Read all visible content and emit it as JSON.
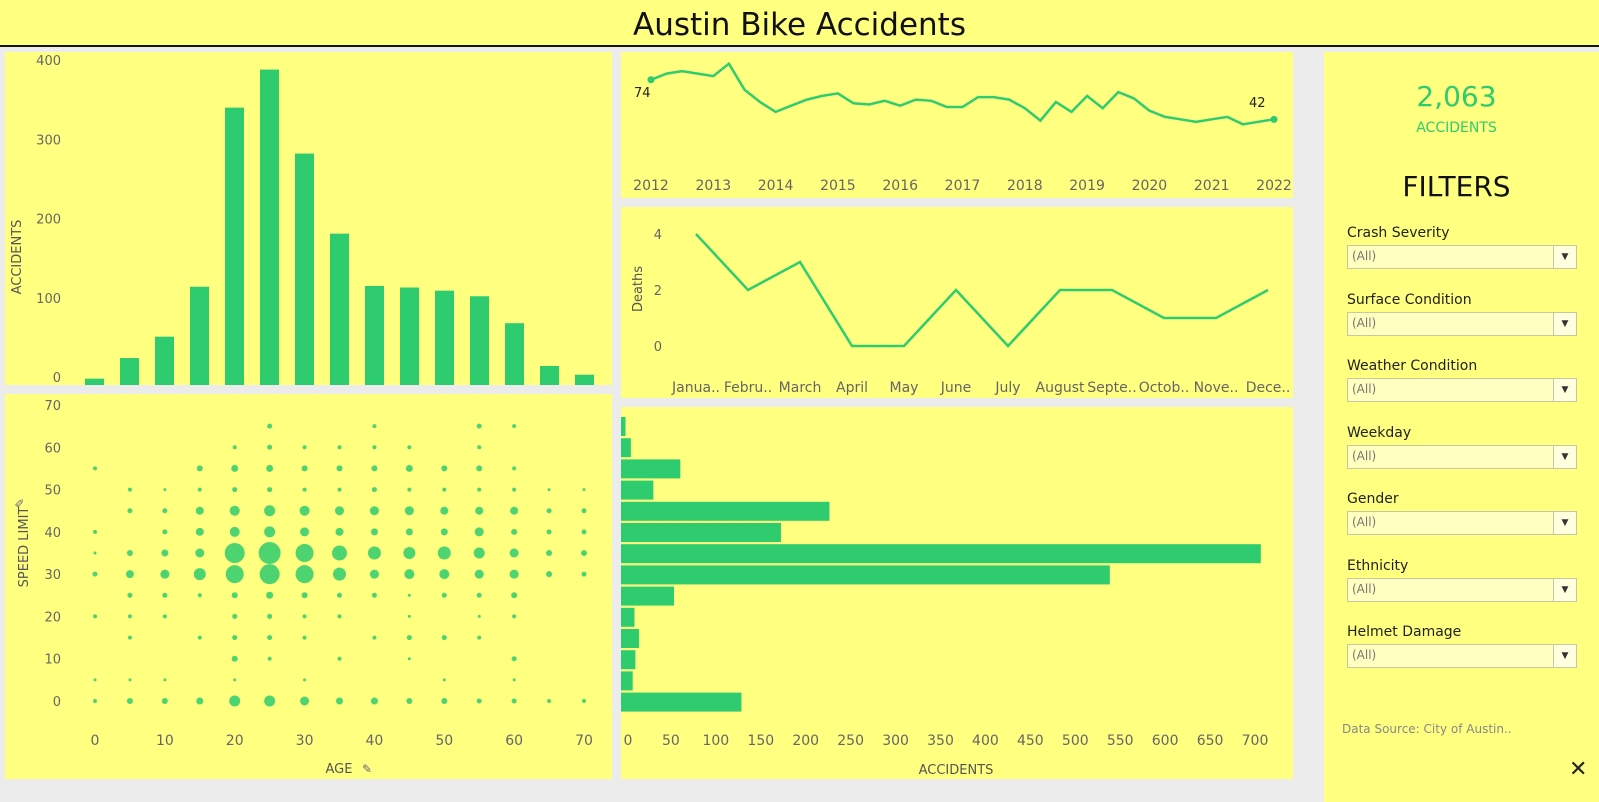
{
  "title": "Austin Bike Accidents",
  "colors": {
    "accent": "#2ecc6f",
    "background": "#ffff80",
    "divider": "#ececec"
  },
  "kpi": {
    "value": "2,063",
    "label": "ACCIDENTS"
  },
  "filters_title": "FILTERS",
  "filters": [
    {
      "label": "Crash Severity",
      "value": "(All)"
    },
    {
      "label": "Surface Condition",
      "value": "(All)"
    },
    {
      "label": "Weather Condition",
      "value": "(All)"
    },
    {
      "label": "Weekday",
      "value": "(All)"
    },
    {
      "label": "Gender",
      "value": "(All)"
    },
    {
      "label": "Ethnicity",
      "value": "(All)"
    },
    {
      "label": "Helmet Damage",
      "value": "(All)"
    }
  ],
  "source": "Data Source: City of Austin..",
  "icons": {
    "pin": "pin-icon",
    "close": "close-icon",
    "dropdown": "chevron-down-icon"
  },
  "chart_data": [
    {
      "id": "age_histogram",
      "type": "bar",
      "ylabel": "ACCIDENTS",
      "ylim": [
        0,
        400
      ],
      "yticks": [
        0,
        100,
        200,
        300,
        400
      ],
      "values": [
        8,
        34,
        61,
        124,
        350,
        398,
        292,
        191,
        125,
        123,
        119,
        112,
        78,
        24,
        13
      ]
    },
    {
      "id": "accidents_over_time",
      "type": "line",
      "xticks": [
        "2012",
        "2013",
        "2014",
        "2015",
        "2016",
        "2017",
        "2018",
        "2019",
        "2020",
        "2021",
        "2022"
      ],
      "x_range": [
        2012,
        2022
      ],
      "y_range": [
        35,
        90
      ],
      "start_label": "74",
      "end_label": "42",
      "points": [
        [
          2012.0,
          74
        ],
        [
          2012.25,
          79
        ],
        [
          2012.5,
          81
        ],
        [
          2012.75,
          79
        ],
        [
          2013.0,
          77
        ],
        [
          2013.25,
          87
        ],
        [
          2013.5,
          66
        ],
        [
          2013.75,
          56
        ],
        [
          2014.0,
          48
        ],
        [
          2014.25,
          53
        ],
        [
          2014.5,
          58
        ],
        [
          2014.75,
          61
        ],
        [
          2015.0,
          63
        ],
        [
          2015.25,
          55
        ],
        [
          2015.5,
          54
        ],
        [
          2015.75,
          57
        ],
        [
          2016.0,
          53
        ],
        [
          2016.25,
          58
        ],
        [
          2016.5,
          57
        ],
        [
          2016.75,
          52
        ],
        [
          2017.0,
          52
        ],
        [
          2017.25,
          60
        ],
        [
          2017.5,
          60
        ],
        [
          2017.75,
          58
        ],
        [
          2018.0,
          51
        ],
        [
          2018.25,
          41
        ],
        [
          2018.5,
          56
        ],
        [
          2018.75,
          48
        ],
        [
          2019.0,
          61
        ],
        [
          2019.25,
          51
        ],
        [
          2019.5,
          64
        ],
        [
          2019.75,
          59
        ],
        [
          2020.0,
          49
        ],
        [
          2020.25,
          44
        ],
        [
          2020.5,
          42
        ],
        [
          2020.75,
          40
        ],
        [
          2021.0,
          42
        ],
        [
          2021.25,
          44
        ],
        [
          2021.5,
          38
        ],
        [
          2021.75,
          40
        ],
        [
          2022.0,
          42
        ]
      ]
    },
    {
      "id": "deaths_by_month",
      "type": "line",
      "ylabel": "Deaths",
      "ylim": [
        0,
        4
      ],
      "yticks": [
        0,
        2,
        4
      ],
      "categories": [
        "Janua..",
        "Febru..",
        "March",
        "April",
        "May",
        "June",
        "July",
        "August",
        "Septe..",
        "Octob..",
        "Nove..",
        "Dece.."
      ],
      "values": [
        4,
        2,
        3,
        0,
        0,
        2,
        0,
        2,
        2,
        1,
        1,
        2
      ]
    },
    {
      "id": "speed_limit_bars",
      "type": "bar",
      "orientation": "horizontal",
      "xlabel": "ACCIDENTS",
      "xlim": [
        0,
        730
      ],
      "xticks": [
        0,
        50,
        100,
        150,
        200,
        250,
        300,
        350,
        400,
        450,
        500,
        550,
        600,
        650,
        700
      ],
      "values": [
        5,
        11,
        66,
        36,
        232,
        178,
        712,
        544,
        59,
        15,
        20,
        16,
        13,
        134
      ]
    },
    {
      "id": "age_vs_speed",
      "type": "scatter",
      "xlabel": "AGE",
      "ylabel": "SPEED LIMIT",
      "xlim": [
        0,
        70
      ],
      "ylim": [
        0,
        70
      ],
      "xticks": [
        0,
        10,
        20,
        30,
        40,
        50,
        60,
        70
      ],
      "yticks": [
        0,
        10,
        20,
        30,
        40,
        50,
        60,
        70
      ],
      "points": [
        [
          0,
          0,
          2
        ],
        [
          5,
          0,
          4
        ],
        [
          10,
          0,
          4
        ],
        [
          15,
          0,
          5
        ],
        [
          20,
          0,
          9
        ],
        [
          25,
          0,
          9
        ],
        [
          30,
          0,
          7
        ],
        [
          35,
          0,
          5
        ],
        [
          40,
          0,
          5
        ],
        [
          45,
          0,
          4
        ],
        [
          50,
          0,
          4
        ],
        [
          55,
          0,
          3
        ],
        [
          60,
          0,
          3
        ],
        [
          65,
          0,
          2
        ],
        [
          70,
          0,
          2
        ],
        [
          0,
          5,
          1
        ],
        [
          5,
          5,
          1
        ],
        [
          10,
          5,
          1
        ],
        [
          20,
          5,
          1
        ],
        [
          30,
          5,
          1
        ],
        [
          50,
          5,
          1
        ],
        [
          60,
          5,
          1
        ],
        [
          20,
          10,
          4
        ],
        [
          25,
          10,
          2
        ],
        [
          35,
          10,
          2
        ],
        [
          45,
          10,
          1
        ],
        [
          60,
          10,
          3
        ],
        [
          5,
          15,
          2
        ],
        [
          15,
          15,
          2
        ],
        [
          20,
          15,
          3
        ],
        [
          25,
          15,
          3
        ],
        [
          30,
          15,
          2
        ],
        [
          40,
          15,
          2
        ],
        [
          45,
          15,
          3
        ],
        [
          50,
          15,
          3
        ],
        [
          55,
          15,
          2
        ],
        [
          0,
          20,
          2
        ],
        [
          5,
          20,
          2
        ],
        [
          10,
          20,
          2
        ],
        [
          20,
          20,
          3
        ],
        [
          25,
          20,
          3
        ],
        [
          30,
          20,
          2
        ],
        [
          35,
          20,
          2
        ],
        [
          45,
          20,
          1
        ],
        [
          55,
          20,
          1
        ],
        [
          60,
          20,
          2
        ],
        [
          5,
          25,
          3
        ],
        [
          10,
          25,
          3
        ],
        [
          15,
          25,
          2
        ],
        [
          20,
          25,
          4
        ],
        [
          25,
          25,
          5
        ],
        [
          30,
          25,
          4
        ],
        [
          35,
          25,
          3
        ],
        [
          40,
          25,
          3
        ],
        [
          45,
          25,
          1
        ],
        [
          50,
          25,
          3
        ],
        [
          55,
          25,
          3
        ],
        [
          60,
          25,
          4
        ],
        [
          0,
          30,
          3
        ],
        [
          5,
          30,
          6
        ],
        [
          10,
          30,
          7
        ],
        [
          15,
          30,
          10
        ],
        [
          20,
          30,
          16
        ],
        [
          25,
          30,
          18
        ],
        [
          30,
          30,
          16
        ],
        [
          35,
          30,
          11
        ],
        [
          40,
          30,
          7
        ],
        [
          45,
          30,
          8
        ],
        [
          50,
          30,
          8
        ],
        [
          55,
          30,
          7
        ],
        [
          60,
          30,
          7
        ],
        [
          65,
          30,
          4
        ],
        [
          70,
          30,
          3
        ],
        [
          0,
          35,
          1
        ],
        [
          5,
          35,
          4
        ],
        [
          10,
          35,
          5
        ],
        [
          15,
          35,
          7
        ],
        [
          20,
          35,
          18
        ],
        [
          25,
          35,
          20
        ],
        [
          30,
          35,
          16
        ],
        [
          35,
          35,
          13
        ],
        [
          40,
          35,
          11
        ],
        [
          45,
          35,
          10
        ],
        [
          50,
          35,
          11
        ],
        [
          55,
          35,
          9
        ],
        [
          60,
          35,
          7
        ],
        [
          65,
          35,
          4
        ],
        [
          70,
          35,
          4
        ],
        [
          0,
          40,
          2
        ],
        [
          10,
          40,
          3
        ],
        [
          15,
          40,
          6
        ],
        [
          20,
          40,
          8
        ],
        [
          25,
          40,
          9
        ],
        [
          30,
          40,
          7
        ],
        [
          35,
          40,
          6
        ],
        [
          40,
          40,
          5
        ],
        [
          45,
          40,
          5
        ],
        [
          50,
          40,
          5
        ],
        [
          55,
          40,
          7
        ],
        [
          60,
          40,
          4
        ],
        [
          65,
          40,
          3
        ],
        [
          70,
          40,
          3
        ],
        [
          5,
          45,
          3
        ],
        [
          10,
          45,
          3
        ],
        [
          15,
          45,
          6
        ],
        [
          20,
          45,
          8
        ],
        [
          25,
          45,
          9
        ],
        [
          30,
          45,
          8
        ],
        [
          35,
          45,
          7
        ],
        [
          40,
          45,
          7
        ],
        [
          45,
          45,
          7
        ],
        [
          50,
          45,
          6
        ],
        [
          55,
          45,
          6
        ],
        [
          60,
          45,
          6
        ],
        [
          65,
          45,
          3
        ],
        [
          70,
          45,
          3
        ],
        [
          5,
          50,
          2
        ],
        [
          10,
          50,
          1
        ],
        [
          15,
          50,
          2
        ],
        [
          20,
          50,
          3
        ],
        [
          25,
          50,
          3
        ],
        [
          30,
          50,
          2
        ],
        [
          35,
          50,
          2
        ],
        [
          40,
          50,
          3
        ],
        [
          45,
          50,
          2
        ],
        [
          50,
          50,
          2
        ],
        [
          55,
          50,
          2
        ],
        [
          60,
          50,
          2
        ],
        [
          65,
          50,
          1
        ],
        [
          70,
          50,
          1
        ],
        [
          0,
          55,
          2
        ],
        [
          15,
          55,
          4
        ],
        [
          20,
          55,
          5
        ],
        [
          25,
          55,
          5
        ],
        [
          30,
          55,
          4
        ],
        [
          35,
          55,
          4
        ],
        [
          40,
          55,
          4
        ],
        [
          45,
          55,
          5
        ],
        [
          50,
          55,
          4
        ],
        [
          55,
          55,
          4
        ],
        [
          60,
          55,
          2
        ],
        [
          20,
          60,
          2
        ],
        [
          25,
          60,
          3
        ],
        [
          30,
          60,
          2
        ],
        [
          35,
          60,
          2
        ],
        [
          40,
          60,
          2
        ],
        [
          45,
          60,
          2
        ],
        [
          55,
          60,
          2
        ],
        [
          25,
          65,
          3
        ],
        [
          40,
          65,
          2
        ],
        [
          55,
          65,
          3
        ],
        [
          60,
          65,
          2
        ]
      ]
    }
  ]
}
